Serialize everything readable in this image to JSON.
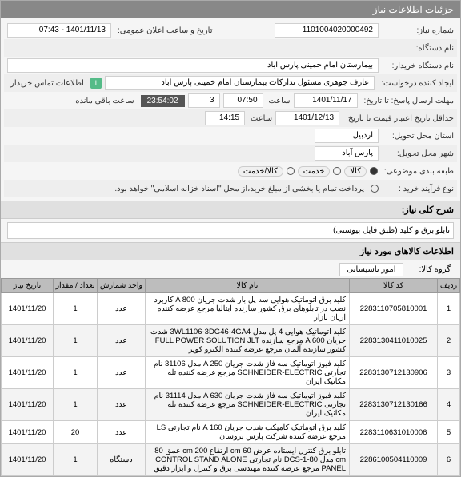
{
  "header": "جزئیات اطلاعات نیاز",
  "info": {
    "need_no_label": "شماره نیاز:",
    "need_no": "1101004020000492",
    "announce_label": "تاریخ و ساعت اعلان عمومی:",
    "announce": "1401/11/13 - 07:43",
    "device_label": "نام دستگاه:",
    "buyer_label": "نام دستگاه خریدار:",
    "buyer": "بیمارستان امام خمینی پارس اباد",
    "requester_label": "ایجاد کننده درخواست:",
    "requester": "عارف جوهری مسئول تدارکات بیمارستان امام خمینی پارس اباد",
    "contact_label": "اطلاعات تماس خریدار",
    "deadline_label": "مهلت ارسال پاسخ: تا تاریخ:",
    "deadline_date": "1401/11/17",
    "time_label": "ساعت",
    "deadline_time": "07:50",
    "remaining_count": "3",
    "remaining_time": "23:54:02",
    "remaining_suffix": "ساعت باقی مانده",
    "validity_label": "حداقل تاریخ اعتبار قیمت تا تاریخ:",
    "validity_date": "1401/12/13",
    "validity_time": "14:15",
    "province_label": "استان محل تحویل:",
    "province": "اردبیل",
    "city_label": "شهر محل تحویل:",
    "city": "پارس آباد",
    "category_label": "طبقه بندی موضوعی:",
    "cat_goods": "کالا",
    "cat_service": "خدمت",
    "cat_both": "کالا/خدمت",
    "purchase_type_label": "نوع فرآیند خرید :",
    "purchase_note": "پرداخت تمام یا بخشی از مبلغ خرید،از محل \"اسناد خزانه اسلامی\" خواهد بود."
  },
  "desc": {
    "title": "شرح کلی نیاز:",
    "text": "تابلو برق و کلید (طبق فایل پیوستی)"
  },
  "goods": {
    "title": "اطلاعات کالاهای مورد نیاز",
    "group_label": "گروه کالا:",
    "group": "امور تاسیساتی",
    "cols": [
      "ردیف",
      "کد کالا",
      "نام کالا",
      "واحد شمارش",
      "تعداد / مقدار",
      "تاریخ نیاز"
    ],
    "rows": [
      {
        "n": "1",
        "code": "2283110705810001",
        "name": "کلید برق اتوماتیک هوایی سه پل بار شدت جریان A 800 کاربرد نصب در تابلوهای برق کشور سازنده ایتالیا مرجع عرضه کننده اریان بازار",
        "unit": "عدد",
        "qty": "1",
        "date": "1401/11/20"
      },
      {
        "n": "2",
        "code": "2283130411010025",
        "name": "کلید اتوماتیک هوایی 4 پل مدل 3WL1106-3DG46-4GA4 شدت جریان A 600 مرجع سازنده FULL POWER SOLUTION JLT کشور سازنده آلمان مرجع عرضه کننده الکترو کویر",
        "unit": "عدد",
        "qty": "1",
        "date": "1401/11/20"
      },
      {
        "n": "3",
        "code": "2283130712130906",
        "name": "کلید فیوز اتوماتیک سه فاز شدت جریان A 250 مدل 31106 نام تجارتی SCHNEIDER-ELECTRIC مرجع عرضه کننده تله مکانیک ایران",
        "unit": "عدد",
        "qty": "1",
        "date": "1401/11/20"
      },
      {
        "n": "4",
        "code": "2283130712130166",
        "name": "کلید فیوز اتوماتیک سه فاز شدت جریان A 630 مدل 31114 نام تجارتی SCHNEIDER-ELECTRIC مرجع عرضه کننده تله مکانیک ایران",
        "unit": "عدد",
        "qty": "1",
        "date": "1401/11/20"
      },
      {
        "n": "5",
        "code": "2283110631010006",
        "name": "کلید برق اتوماتیک کامپکت شدت جریان A 160 نام تجارتی LS مرجع عرضه کننده شرکت پارس پروسان",
        "unit": "عدد",
        "qty": "20",
        "date": "1401/11/20"
      },
      {
        "n": "6",
        "code": "2286100504110009",
        "name": "تابلو برق کنترل ایستاده عرض cm 60 ارتفاع cm 200 عمق 80 cm مدل DCS-1-80 نام تجارتی CONTROL STAND ALONE PANEL مرجع عرضه کننده مهندسی برق و کنترل و ابزار دقیق",
        "unit": "دستگاه",
        "qty": "1",
        "date": "1401/11/20"
      }
    ]
  }
}
